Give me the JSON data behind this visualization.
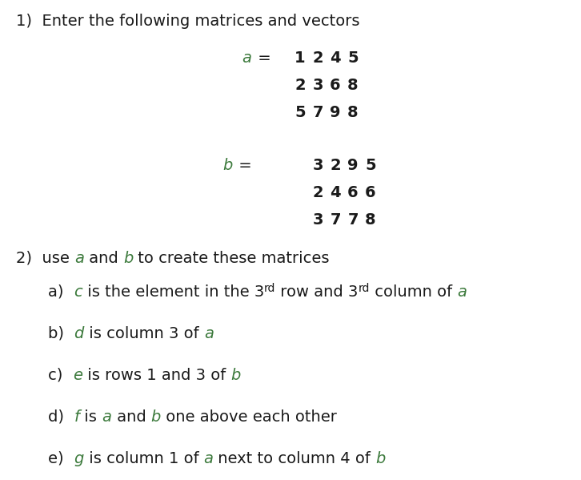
{
  "background_color": "#ffffff",
  "green_color": "#3c7a3c",
  "black_color": "#1a1a1a",
  "font_family": "DejaVu Sans",
  "main_fontsize": 14,
  "matrix_fontsize": 14,
  "figsize": [
    7.26,
    5.99
  ],
  "dpi": 100,
  "title": "1)  Enter the following matrices and vectors",
  "matrix_a": [
    [
      1,
      2,
      4,
      5
    ],
    [
      2,
      3,
      6,
      8
    ],
    [
      5,
      7,
      9,
      8
    ]
  ],
  "matrix_b": [
    [
      3,
      2,
      9,
      5
    ],
    [
      2,
      4,
      6,
      6
    ],
    [
      3,
      7,
      7,
      8
    ]
  ],
  "section2_line": [
    {
      "text": "2)  use ",
      "green": false,
      "italic": false
    },
    {
      "text": "a",
      "green": true,
      "italic": true
    },
    {
      "text": " and ",
      "green": false,
      "italic": false
    },
    {
      "text": "b",
      "green": true,
      "italic": true
    },
    {
      "text": " to create these matrices",
      "green": false,
      "italic": false
    }
  ],
  "items": [
    {
      "parts": [
        {
          "text": "a)  ",
          "green": false,
          "italic": false
        },
        {
          "text": "c",
          "green": true,
          "italic": true
        },
        {
          "text": " is the element in the 3",
          "green": false,
          "italic": false
        },
        {
          "text": "rd",
          "green": false,
          "italic": false,
          "super": true
        },
        {
          "text": " row and 3",
          "green": false,
          "italic": false
        },
        {
          "text": "rd",
          "green": false,
          "italic": false,
          "super": true
        },
        {
          "text": " column of ",
          "green": false,
          "italic": false
        },
        {
          "text": "a",
          "green": true,
          "italic": true
        }
      ]
    },
    {
      "parts": [
        {
          "text": "b)  ",
          "green": false,
          "italic": false
        },
        {
          "text": "d",
          "green": true,
          "italic": true
        },
        {
          "text": " is column 3 of ",
          "green": false,
          "italic": false
        },
        {
          "text": "a",
          "green": true,
          "italic": true
        }
      ]
    },
    {
      "parts": [
        {
          "text": "c)  ",
          "green": false,
          "italic": false
        },
        {
          "text": "e",
          "green": true,
          "italic": true
        },
        {
          "text": " is rows 1 and 3 of ",
          "green": false,
          "italic": false
        },
        {
          "text": "b",
          "green": true,
          "italic": true
        }
      ]
    },
    {
      "parts": [
        {
          "text": "d)  ",
          "green": false,
          "italic": false
        },
        {
          "text": "f",
          "green": true,
          "italic": true
        },
        {
          "text": " is ",
          "green": false,
          "italic": false
        },
        {
          "text": "a",
          "green": true,
          "italic": true
        },
        {
          "text": " and ",
          "green": false,
          "italic": false
        },
        {
          "text": "b",
          "green": true,
          "italic": true
        },
        {
          "text": " one above each other",
          "green": false,
          "italic": false
        }
      ]
    },
    {
      "parts": [
        {
          "text": "e)  ",
          "green": false,
          "italic": false
        },
        {
          "text": "g",
          "green": true,
          "italic": true
        },
        {
          "text": " is column 1 of ",
          "green": false,
          "italic": false
        },
        {
          "text": "a",
          "green": true,
          "italic": true
        },
        {
          "text": " next to column 4 of ",
          "green": false,
          "italic": false
        },
        {
          "text": "b",
          "green": true,
          "italic": true
        }
      ]
    }
  ]
}
